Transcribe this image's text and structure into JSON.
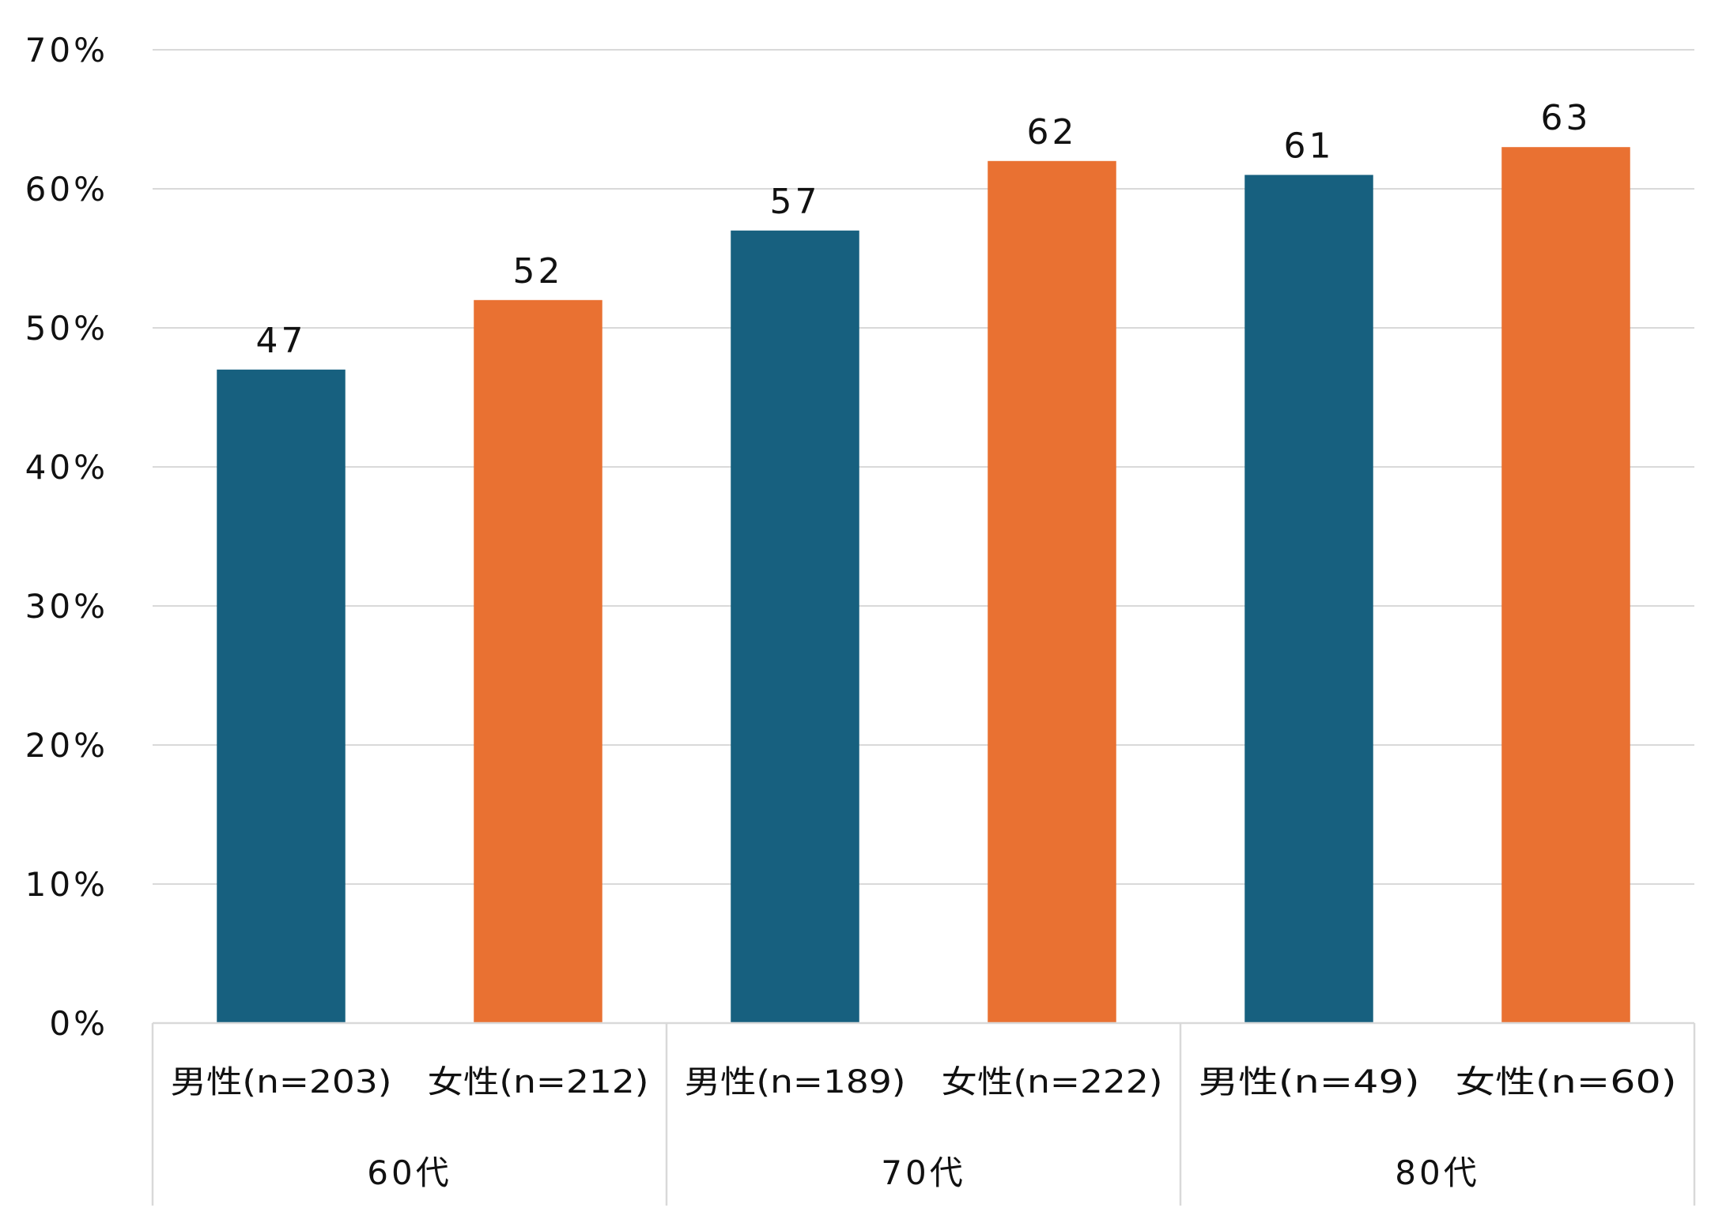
{
  "chart_data": {
    "type": "bar",
    "title": "",
    "xlabel": "",
    "ylabel": "",
    "ylim": [
      0,
      70
    ],
    "yticks": [
      "0%",
      "10%",
      "20%",
      "30%",
      "40%",
      "50%",
      "60%",
      "70%"
    ],
    "ytick_values": [
      0,
      10,
      20,
      30,
      40,
      50,
      60,
      70
    ],
    "grid": true,
    "categories": [
      "男性(n=203)",
      "女性(n=212)",
      "男性(n=189)",
      "女性(n=222)",
      "男性(n=49)",
      "女性(n=60)"
    ],
    "groups": [
      {
        "label": "60代",
        "span": 2
      },
      {
        "label": "70代",
        "span": 2
      },
      {
        "label": "80代",
        "span": 2
      }
    ],
    "values": [
      47,
      52,
      57,
      62,
      61,
      63
    ],
    "data_labels": [
      "47",
      "52",
      "57",
      "62",
      "61",
      "63"
    ],
    "bar_colors": [
      "#17607F",
      "#E97132",
      "#17607F",
      "#E97132",
      "#17607F",
      "#E97132"
    ],
    "grid_color": "#D9D9D9"
  }
}
